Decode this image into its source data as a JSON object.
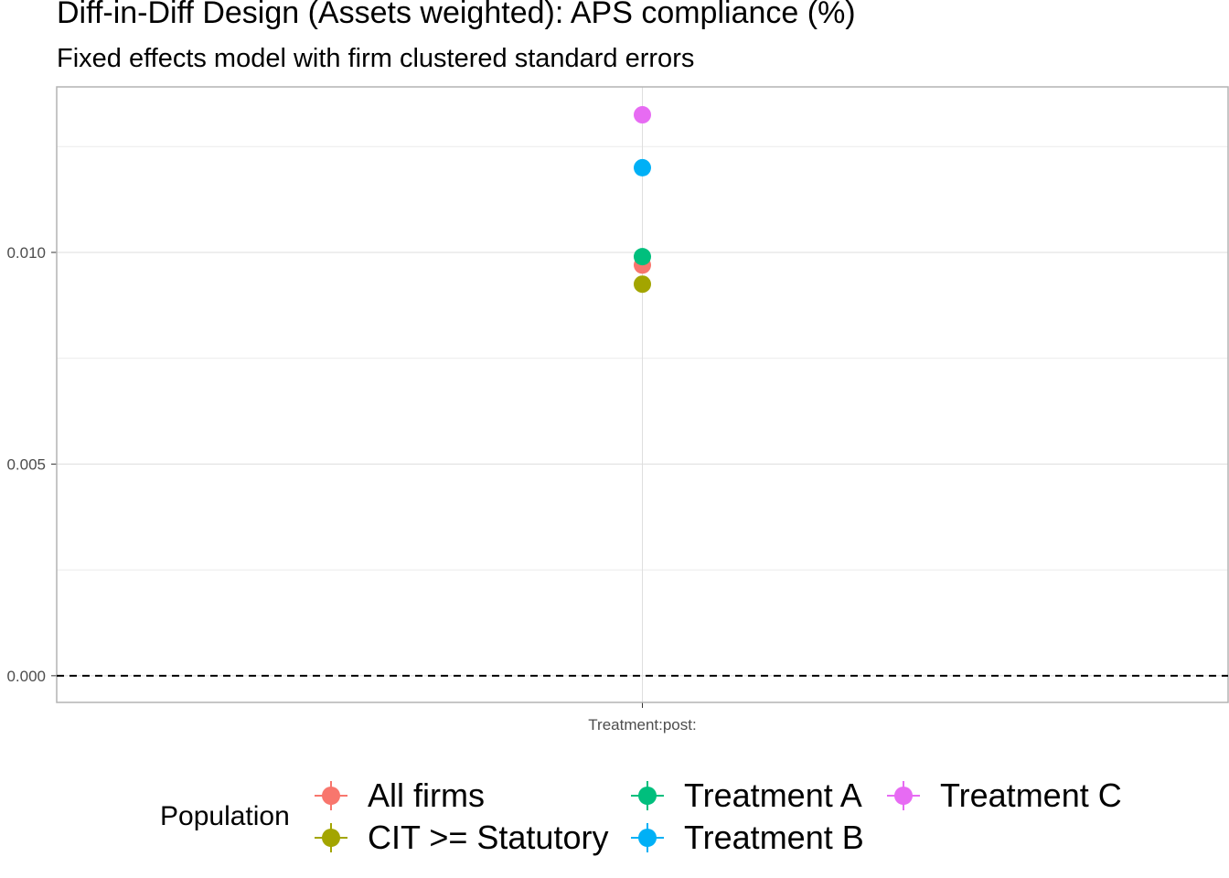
{
  "title": "Diff-in-Diff Design (Assets weighted): APS compliance (%)",
  "subtitle": "Fixed effects model with firm clustered standard errors",
  "chart_data": {
    "type": "scatter",
    "title": "Diff-in-Diff Design (Assets weighted): APS compliance (%)",
    "subtitle": "Fixed effects model with firm clustered standard errors",
    "xlabel": "",
    "ylabel": "",
    "categories": [
      "Treatment:post:"
    ],
    "ylim": [
      -0.00063,
      0.01391
    ],
    "yticks": [
      0.0,
      0.005,
      0.01
    ],
    "ytick_labels": [
      "0.000",
      "0.005",
      "0.010"
    ],
    "grid": true,
    "reference_line": {
      "y": 0,
      "style": "dashed"
    },
    "legend": {
      "title": "Population",
      "position": "bottom"
    },
    "series": [
      {
        "name": "All firms",
        "color": "#F8766D",
        "values": [
          0.0097
        ]
      },
      {
        "name": "CIT >= Statutory",
        "color": "#A3A500",
        "values": [
          0.00925
        ]
      },
      {
        "name": "Treatment A",
        "color": "#00BF7D",
        "values": [
          0.0099
        ]
      },
      {
        "name": "Treatment B",
        "color": "#00B0F6",
        "values": [
          0.012
        ]
      },
      {
        "name": "Treatment C",
        "color": "#E76BF3",
        "values": [
          0.01325
        ]
      }
    ]
  }
}
